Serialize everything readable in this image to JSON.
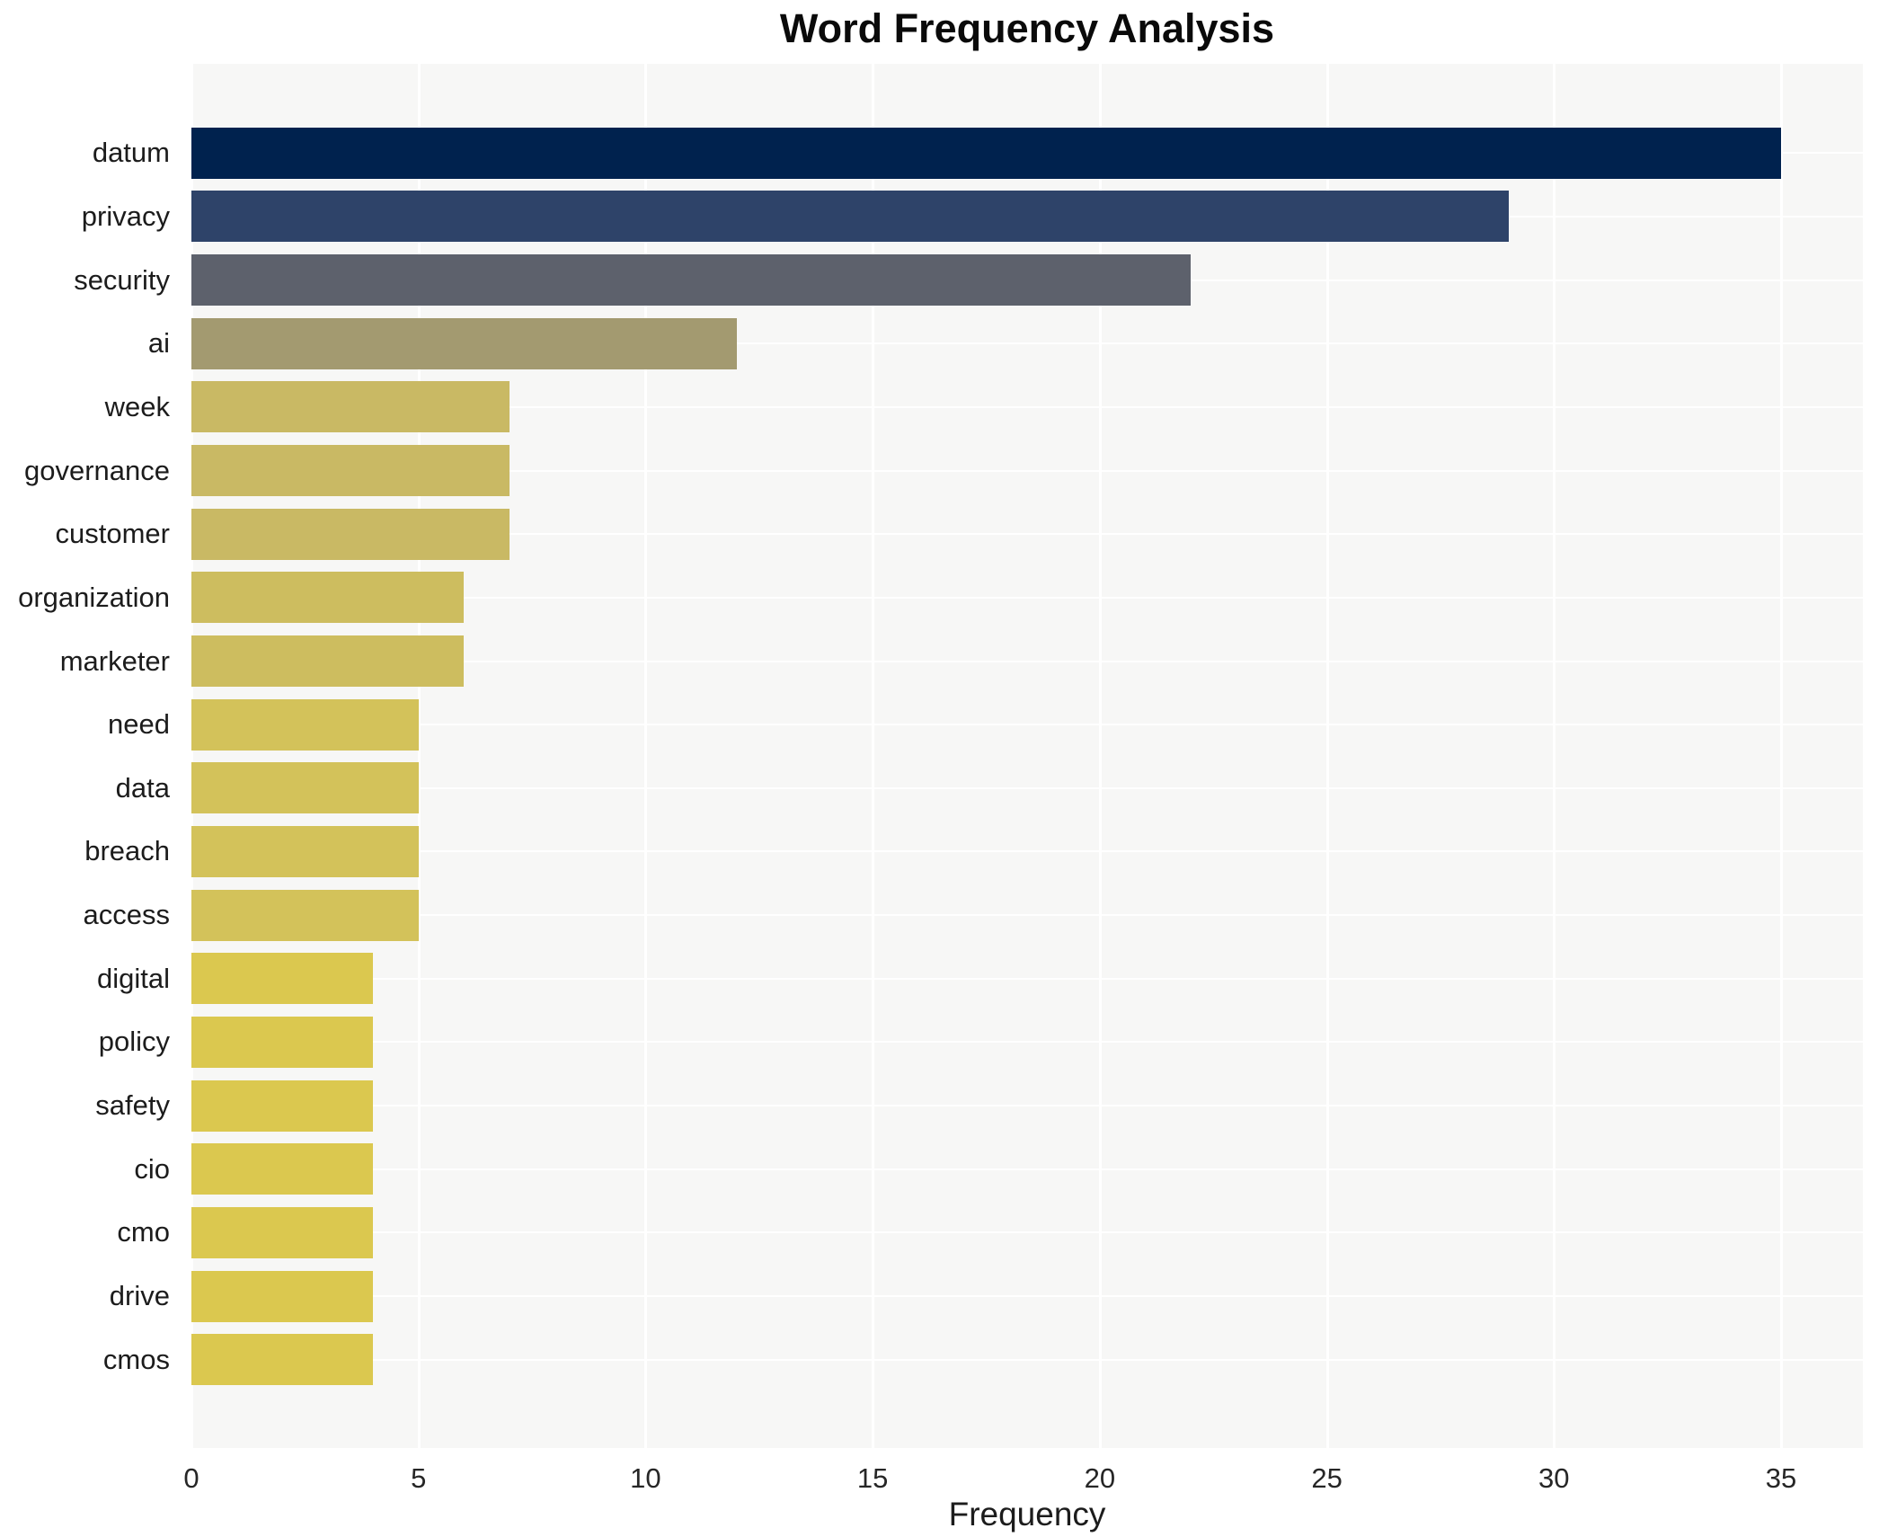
{
  "chart_data": {
    "type": "bar",
    "orientation": "horizontal",
    "title": "Word Frequency Analysis",
    "xlabel": "Frequency",
    "ylabel": "",
    "xlim": [
      0,
      36.8
    ],
    "xticks": [
      0,
      5,
      10,
      15,
      20,
      25,
      30,
      35
    ],
    "grid": true,
    "legend": "none",
    "plot_background": "#f7f7f6",
    "gridline_color": "#ffffff",
    "categories": [
      "datum",
      "privacy",
      "security",
      "ai",
      "week",
      "governance",
      "customer",
      "organization",
      "marketer",
      "need",
      "data",
      "breach",
      "access",
      "digital",
      "policy",
      "safety",
      "cio",
      "cmo",
      "drive",
      "cmos"
    ],
    "values": [
      35,
      29,
      22,
      12,
      7,
      7,
      7,
      6,
      6,
      5,
      5,
      5,
      5,
      4,
      4,
      4,
      4,
      4,
      4,
      4
    ],
    "bar_colors": [
      "#00224e",
      "#2e4369",
      "#5d616c",
      "#a39a70",
      "#c9b964",
      "#c9b964",
      "#c9b964",
      "#cdbd5f",
      "#cdbd5f",
      "#d3c25a",
      "#d3c25a",
      "#d3c25a",
      "#d3c25a",
      "#dbc84f",
      "#dbc84f",
      "#dbc84f",
      "#dbc84f",
      "#dbc84f",
      "#dbc84f",
      "#dbc84f"
    ]
  }
}
